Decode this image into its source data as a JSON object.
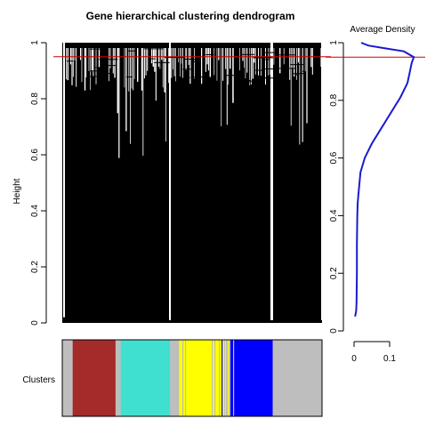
{
  "chart_data": [
    {
      "type": "dendrogram",
      "title": "Gene hierarchical clustering dendrogram",
      "ylabel": "Height",
      "ylim": [
        0,
        1
      ],
      "yticks": [
        "0",
        "0.2",
        "0.4",
        "0.6",
        "0.8",
        "1"
      ],
      "cut_height": 0.95,
      "cut_color": "#cc0000"
    },
    {
      "type": "line",
      "title": "Average Density",
      "xlim": [
        0,
        0.17
      ],
      "ylim": [
        0,
        1
      ],
      "xticks": [
        "0",
        "0.1"
      ],
      "yticks": [
        "0",
        "0.2",
        "0.4",
        "0.6",
        "0.8",
        "1"
      ],
      "line_color": "#1a1ad0",
      "cut_height": 0.95,
      "x": [
        0.003,
        0.006,
        0.007,
        0.008,
        0.008,
        0.009,
        0.01,
        0.012,
        0.018,
        0.03,
        0.05,
        0.075,
        0.1,
        0.13,
        0.15,
        0.157,
        0.162,
        0.168,
        0.14,
        0.09,
        0.04,
        0.02
      ],
      "y": [
        0.05,
        0.07,
        0.1,
        0.2,
        0.3,
        0.39,
        0.44,
        0.47,
        0.55,
        0.6,
        0.65,
        0.7,
        0.75,
        0.81,
        0.86,
        0.9,
        0.93,
        0.95,
        0.97,
        0.98,
        0.99,
        1.0
      ]
    },
    {
      "type": "color-bar",
      "label": "Clusters",
      "segments": [
        {
          "color": "#bebebe",
          "share": 0.04
        },
        {
          "color": "#a52a2a",
          "share": 0.165
        },
        {
          "color": "#bebebe",
          "share": 0.02
        },
        {
          "color": "#40e0d0",
          "share": 0.19
        },
        {
          "color": "#bebebe",
          "share": 0.035
        },
        {
          "color": "#ffff00",
          "share": 0.18
        },
        {
          "color": "#bebebe",
          "share": 0.02
        },
        {
          "color": "#0000ff",
          "share": 0.16
        },
        {
          "color": "#bebebe",
          "share": 0.19
        }
      ]
    }
  ]
}
